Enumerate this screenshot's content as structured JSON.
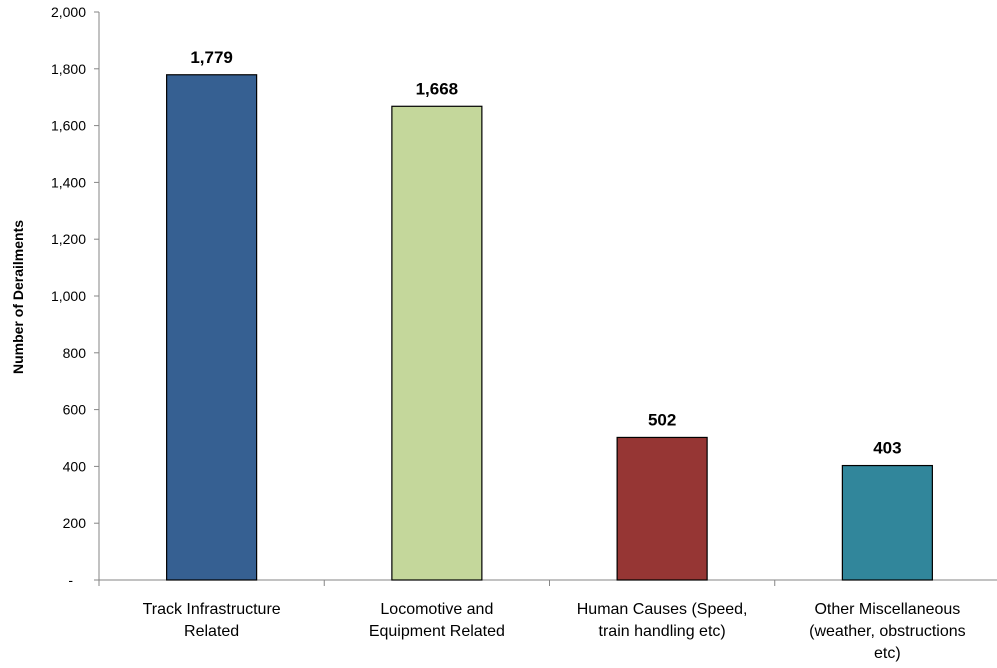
{
  "chart_data": {
    "type": "bar",
    "title": "",
    "xlabel": "",
    "ylabel": "Number of Derailments",
    "ylim": [
      0,
      2000
    ],
    "yticks": [
      {
        "value": 0,
        "label": "-"
      },
      {
        "value": 200,
        "label": "200"
      },
      {
        "value": 400,
        "label": "400"
      },
      {
        "value": 600,
        "label": "600"
      },
      {
        "value": 800,
        "label": "800"
      },
      {
        "value": 1000,
        "label": "1,000"
      },
      {
        "value": 1200,
        "label": "1,200"
      },
      {
        "value": 1400,
        "label": "1,400"
      },
      {
        "value": 1600,
        "label": "1,600"
      },
      {
        "value": 1800,
        "label": "1,800"
      },
      {
        "value": 2000,
        "label": "2,000"
      }
    ],
    "grid": false,
    "categories": [
      [
        "Track Infrastructure",
        "Related"
      ],
      [
        "Locomotive and",
        "Equipment Related"
      ],
      [
        "Human Causes (Speed,",
        "train handling etc)"
      ],
      [
        "Other Miscellaneous",
        "(weather, obstructions",
        "etc)"
      ]
    ],
    "values": [
      1779,
      1668,
      502,
      403
    ],
    "data_labels": [
      "1,779",
      "1,668",
      "502",
      "403"
    ],
    "colors": [
      "#366092",
      "#C4D79B",
      "#963634",
      "#31869B"
    ]
  }
}
